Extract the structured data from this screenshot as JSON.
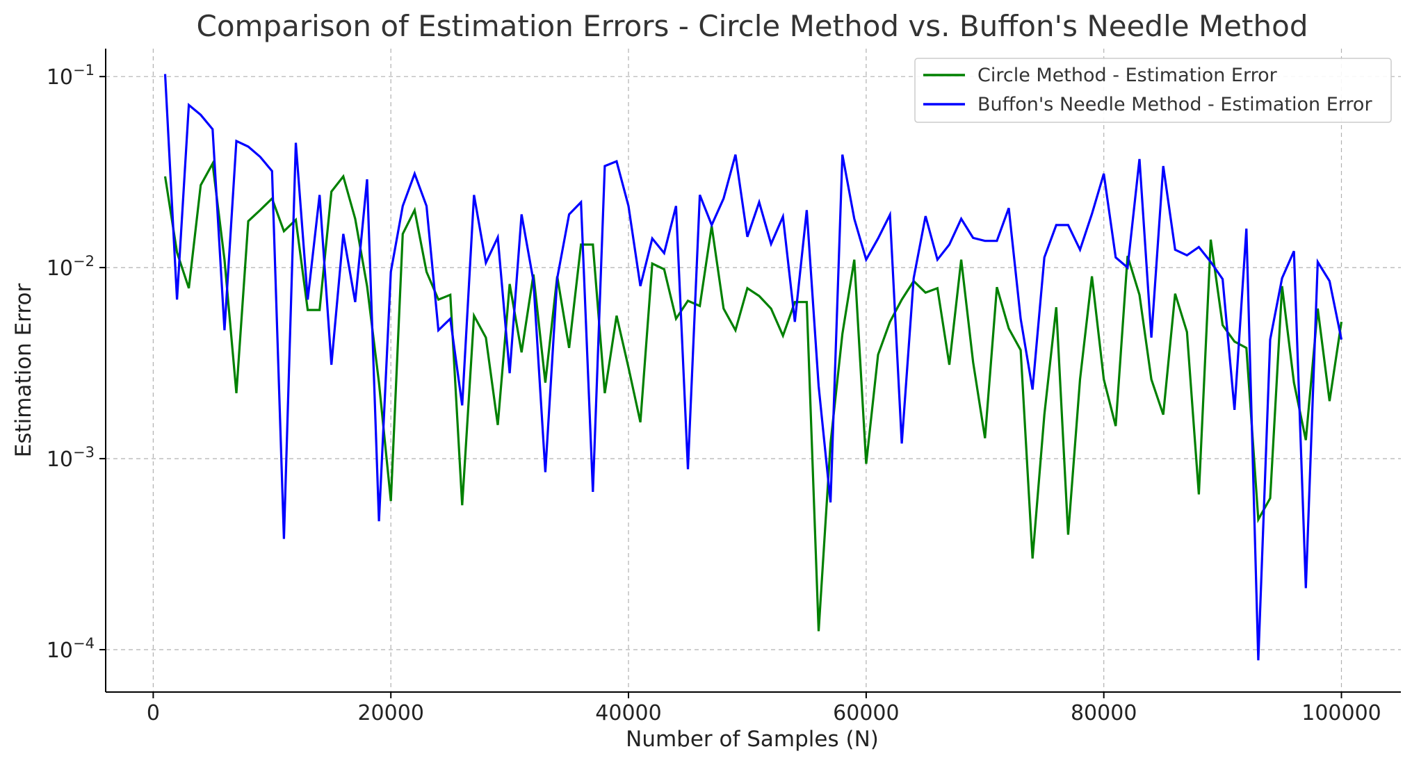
{
  "chart_data": {
    "type": "line",
    "title": "Comparison of Estimation Errors - Circle Method vs. Buffon's Needle Method",
    "xlabel": "Number of Samples (N)",
    "ylabel": "Estimation Error",
    "yscale": "log",
    "xlim": [
      -4000,
      105000
    ],
    "ylim": [
      6e-05,
      0.14
    ],
    "grid": true,
    "legend_position": "top-right",
    "x_ticks": [
      0,
      20000,
      40000,
      60000,
      80000,
      100000
    ],
    "x_tick_labels": [
      "0",
      "20000",
      "40000",
      "60000",
      "80000",
      "100000"
    ],
    "y_ticks": [
      {
        "value": 0.1,
        "base": "10",
        "exp": "−1"
      },
      {
        "value": 0.01,
        "base": "10",
        "exp": "−2"
      },
      {
        "value": 0.001,
        "base": "10",
        "exp": "−3"
      },
      {
        "value": 0.0001,
        "base": "10",
        "exp": "−4"
      }
    ],
    "x": [
      1000,
      2000,
      3000,
      4000,
      5000,
      6000,
      7000,
      8000,
      9000,
      10000,
      11000,
      12000,
      13000,
      14000,
      15000,
      16000,
      17000,
      18000,
      19000,
      20000,
      21000,
      22000,
      23000,
      24000,
      25000,
      26000,
      27000,
      28000,
      29000,
      30000,
      31000,
      32000,
      33000,
      34000,
      35000,
      36000,
      37000,
      38000,
      39000,
      40000,
      41000,
      42000,
      43000,
      44000,
      45000,
      46000,
      47000,
      48000,
      49000,
      50000,
      51000,
      52000,
      53000,
      54000,
      55000,
      56000,
      57000,
      58000,
      59000,
      60000,
      61000,
      62000,
      63000,
      64000,
      65000,
      66000,
      67000,
      68000,
      69000,
      70000,
      71000,
      72000,
      73000,
      74000,
      75000,
      76000,
      77000,
      78000,
      79000,
      80000,
      81000,
      82000,
      83000,
      84000,
      85000,
      86000,
      87000,
      88000,
      89000,
      90000,
      91000,
      92000,
      93000,
      94000,
      95000,
      96000,
      97000,
      98000,
      99000,
      100000
    ],
    "series": [
      {
        "name": "Circle Method - Estimation Error",
        "color": "#008000",
        "values": [
          0.03,
          0.012,
          0.0078,
          0.027,
          0.035,
          0.011,
          0.0022,
          0.0175,
          0.02,
          0.023,
          0.0155,
          0.0178,
          0.006,
          0.006,
          0.025,
          0.03,
          0.018,
          0.008,
          0.0025,
          0.0006,
          0.015,
          0.02,
          0.0095,
          0.0068,
          0.0072,
          0.00057,
          0.0056,
          0.0043,
          0.0015,
          0.0082,
          0.0036,
          0.0092,
          0.0025,
          0.009,
          0.0038,
          0.0132,
          0.0132,
          0.0022,
          0.0056,
          0.003,
          0.00155,
          0.0105,
          0.0098,
          0.0054,
          0.0067,
          0.0063,
          0.0165,
          0.0061,
          0.0047,
          0.0078,
          0.0071,
          0.0061,
          0.0044,
          0.0066,
          0.0066,
          0.000125,
          0.0012,
          0.0045,
          0.011,
          0.00094,
          0.0035,
          0.0052,
          0.0068,
          0.0085,
          0.0074,
          0.0078,
          0.0031,
          0.011,
          0.0032,
          0.00128,
          0.0079,
          0.0048,
          0.0037,
          0.0003,
          0.0017,
          0.0062,
          0.0004,
          0.0026,
          0.009,
          0.0026,
          0.00148,
          0.0115,
          0.0072,
          0.0026,
          0.0017,
          0.0073,
          0.0046,
          0.00065,
          0.014,
          0.005,
          0.0041,
          0.0038,
          0.00048,
          0.00062,
          0.008,
          0.0025,
          0.00125,
          0.0061,
          0.002,
          0.0052
        ]
      },
      {
        "name": "Buffon's Needle Method - Estimation Error",
        "color": "#0000ff",
        "values": [
          0.103,
          0.0068,
          0.071,
          0.063,
          0.053,
          0.0047,
          0.046,
          0.043,
          0.038,
          0.032,
          0.00038,
          0.045,
          0.0068,
          0.024,
          0.0031,
          0.015,
          0.0066,
          0.029,
          0.00047,
          0.0095,
          0.021,
          0.031,
          0.021,
          0.0047,
          0.0054,
          0.0019,
          0.024,
          0.0106,
          0.0144,
          0.0028,
          0.019,
          0.0085,
          0.00085,
          0.0088,
          0.019,
          0.022,
          0.00067,
          0.034,
          0.036,
          0.021,
          0.008,
          0.0142,
          0.0119,
          0.021,
          0.00088,
          0.024,
          0.0167,
          0.023,
          0.039,
          0.0145,
          0.022,
          0.0133,
          0.0185,
          0.0052,
          0.02,
          0.0024,
          0.00059,
          0.039,
          0.018,
          0.011,
          0.0142,
          0.0189,
          0.0012,
          0.0088,
          0.0186,
          0.011,
          0.0132,
          0.018,
          0.0143,
          0.0138,
          0.0138,
          0.0205,
          0.0054,
          0.0023,
          0.0113,
          0.0167,
          0.0167,
          0.0124,
          0.0191,
          0.031,
          0.0113,
          0.01,
          0.037,
          0.0043,
          0.034,
          0.0124,
          0.0116,
          0.0128,
          0.0107,
          0.0087,
          0.0018,
          0.016,
          8.8e-05,
          0.0042,
          0.0088,
          0.0122,
          0.00021,
          0.0107,
          0.0085,
          0.0042
        ]
      }
    ]
  }
}
